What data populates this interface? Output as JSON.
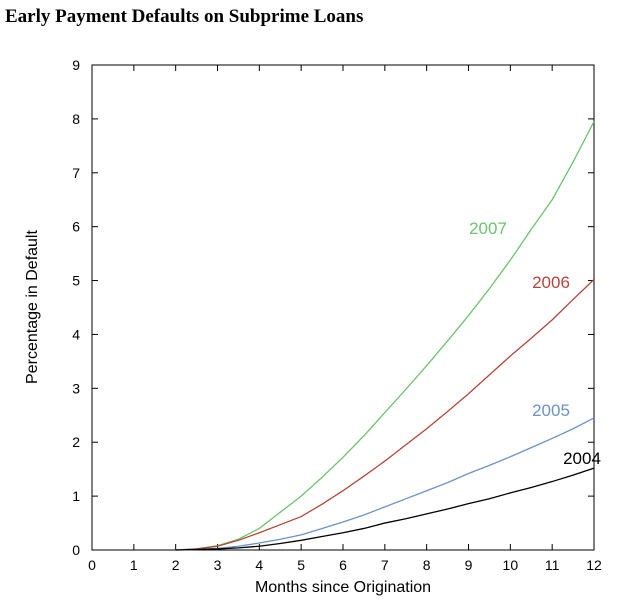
{
  "chart_data": {
    "type": "line",
    "title": "Early Payment Defaults on Subprime Loans",
    "x_label": "Months since Origination",
    "y_label": "Percentage in Default",
    "x": [
      2,
      2.5,
      3,
      3.5,
      4,
      4.5,
      5,
      5.5,
      6,
      6.5,
      7,
      7.5,
      8,
      8.5,
      9,
      9.5,
      10,
      10.5,
      11,
      11.5,
      12
    ],
    "series": [
      {
        "name": "2007",
        "color": "#6cc46c",
        "values": [
          0,
          0.02,
          0.08,
          0.2,
          0.4,
          0.7,
          1.0,
          1.35,
          1.72,
          2.12,
          2.55,
          2.98,
          3.42,
          3.88,
          4.35,
          4.85,
          5.38,
          5.95,
          6.5,
          7.2,
          7.95
        ]
      },
      {
        "name": "2006",
        "color": "#b5453a",
        "values": [
          0,
          0.02,
          0.07,
          0.18,
          0.32,
          0.47,
          0.62,
          0.85,
          1.1,
          1.37,
          1.65,
          1.95,
          2.25,
          2.57,
          2.9,
          3.25,
          3.6,
          3.93,
          4.27,
          4.65,
          5.02
        ]
      },
      {
        "name": "2005",
        "color": "#6b93c8",
        "values": [
          0,
          0.01,
          0.03,
          0.07,
          0.13,
          0.2,
          0.28,
          0.4,
          0.52,
          0.65,
          0.8,
          0.95,
          1.1,
          1.25,
          1.42,
          1.57,
          1.73,
          1.9,
          2.07,
          2.25,
          2.45
        ]
      },
      {
        "name": "2004",
        "color": "#000000",
        "values": [
          0,
          0.01,
          0.02,
          0.04,
          0.07,
          0.12,
          0.18,
          0.25,
          0.32,
          0.4,
          0.5,
          0.58,
          0.67,
          0.76,
          0.86,
          0.95,
          1.06,
          1.16,
          1.27,
          1.39,
          1.52
        ]
      }
    ],
    "xlim": [
      0,
      12
    ],
    "ylim": [
      0,
      9
    ],
    "xticks": [
      0,
      1,
      2,
      3,
      4,
      5,
      6,
      7,
      8,
      9,
      10,
      11,
      12
    ],
    "yticks": [
      0,
      1,
      2,
      3,
      4,
      5,
      6,
      7,
      8,
      9
    ]
  }
}
